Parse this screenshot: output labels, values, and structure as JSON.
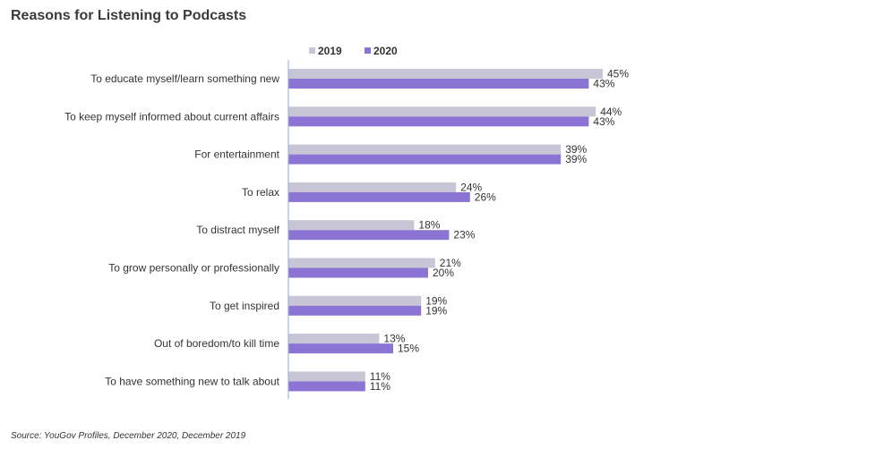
{
  "title": "Reasons for Listening to Podcasts",
  "source": "Source: YouGov Profiles, December 2020, December 2019",
  "colors": {
    "series_2019": "#c8c5d6",
    "series_2020": "#8b74d4",
    "axis": "#8faadc"
  },
  "chart_data": {
    "type": "bar",
    "orientation": "horizontal",
    "title": "Reasons for Listening to Podcasts",
    "legend_position": "top",
    "grid": false,
    "xlim": [
      0,
      50
    ],
    "categories": [
      "To educate myself/learn something new",
      "To keep myself informed about current affairs",
      "For entertainment",
      "To relax",
      "To distract myself",
      "To grow personally or professionally",
      "To get inspired",
      "Out of boredom/to kill time",
      "To have something new to talk about"
    ],
    "series": [
      {
        "name": "2019",
        "values": [
          45,
          44,
          39,
          24,
          18,
          21,
          19,
          13,
          11
        ],
        "labels": [
          "45%",
          "44%",
          "39%",
          "24%",
          "18%",
          "21%",
          "19%",
          "13%",
          "11%"
        ]
      },
      {
        "name": "2020",
        "values": [
          43,
          43,
          39,
          26,
          23,
          20,
          19,
          15,
          11
        ],
        "labels": [
          "43%",
          "43%",
          "39%",
          "26%",
          "23%",
          "20%",
          "19%",
          "15%",
          "11%"
        ]
      }
    ]
  }
}
